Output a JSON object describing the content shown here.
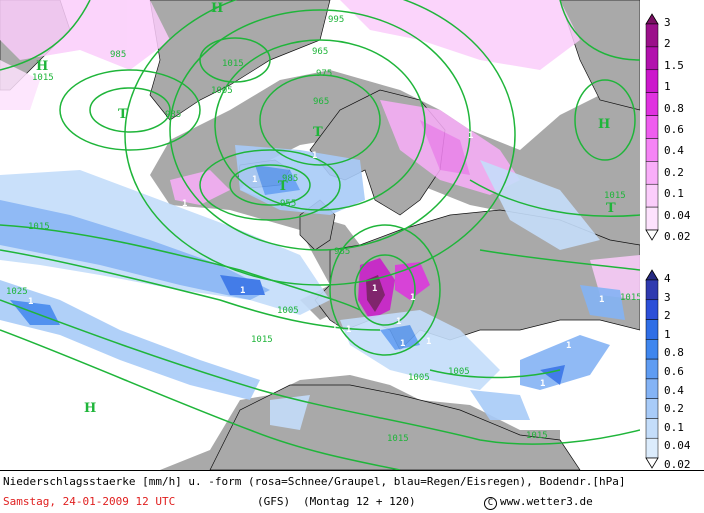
{
  "map": {
    "pressure_labels": [
      "985",
      "1015",
      "1015",
      "995",
      "1005",
      "975",
      "965",
      "985",
      "965",
      "955",
      "985",
      "1015",
      "1015",
      "985",
      "1005",
      "1025",
      "1005",
      "1015",
      "1005",
      "1015",
      "1015",
      "1015"
    ],
    "high_labels": [
      "H",
      "H",
      "H",
      "H"
    ],
    "low_labels": [
      "T",
      "T",
      "T",
      "T"
    ],
    "precip_labels": [
      "1",
      "1",
      "1",
      "1",
      "1",
      "1",
      "1",
      "1",
      "1",
      "1",
      "1",
      "1",
      "1",
      "1",
      "1",
      "1"
    ]
  },
  "legend_snow": {
    "ticks": [
      "3",
      "2",
      "1.5",
      "1",
      "0.8",
      "0.6",
      "0.4",
      "0.2",
      "0.1",
      "0.04",
      "0.02"
    ],
    "colors": [
      "#7a0f63",
      "#9b108a",
      "#b211ad",
      "#cc18cc",
      "#e032e0",
      "#ef5def",
      "#f584f5",
      "#f9aef9",
      "#fbcdfb",
      "#fde2fd",
      "#ffffff"
    ]
  },
  "legend_rain": {
    "ticks": [
      "4",
      "3",
      "2",
      "1",
      "0.8",
      "0.6",
      "0.4",
      "0.2",
      "0.1",
      "0.04",
      "0.02"
    ],
    "colors": [
      "#262a82",
      "#2f3ab0",
      "#2c4fd8",
      "#2f6ee6",
      "#3f86ee",
      "#5f9cf2",
      "#84b3f5",
      "#a8cbf8",
      "#c4ddfa",
      "#dcecfc",
      "#ffffff"
    ]
  },
  "caption": {
    "line1": "Niederschlagsstaerke [mm/h] u. -form (rosa=Schnee/Graupel, blau=Regen/Eisregen), Bodendr.[hPa]",
    "date": "Samstag, 24-01-2009  12 UTC",
    "model": "(GFS)",
    "run": "(Montag 12 + 120)",
    "copyright_symbol": "C",
    "site": "www.wetter3.de"
  },
  "colors": {
    "isobar": "#1fb53a",
    "land": "#a9a9a9",
    "sea": "#ffffff",
    "date_red": "#e02020"
  }
}
